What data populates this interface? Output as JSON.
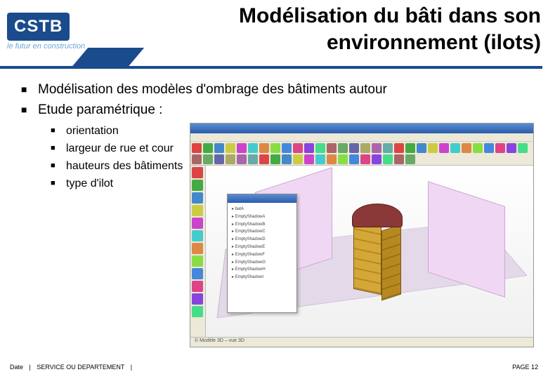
{
  "logo": {
    "name": "CSTB",
    "tagline": "le futur en construction",
    "box_bg": "#1a4b8c",
    "tag_color": "#6aa9d8"
  },
  "title": {
    "line1": "Modélisation du bâti dans son",
    "line2": "environnement (ilots)",
    "rule_color": "#1a4b8c"
  },
  "bullets": {
    "b1": "Modélisation des modèles d'ombrage des bâtiments autour",
    "b2": "Etude paramétrique :",
    "sub": {
      "s1": "orientation",
      "s2": "largeur de rue et cour",
      "s3": "hauteurs des bâtiments",
      "s4": "type d'ilot"
    }
  },
  "screenshot": {
    "toolbar_colors": [
      "#d44",
      "#4a4",
      "#48c",
      "#cc4",
      "#c4c",
      "#4cc",
      "#d84",
      "#8d4",
      "#48d",
      "#d48",
      "#84d",
      "#4d8",
      "#a66",
      "#6a6",
      "#66a",
      "#aa6",
      "#a6a",
      "#6aa",
      "#d44",
      "#4a4",
      "#48c",
      "#cc4",
      "#c4c",
      "#4cc",
      "#d84",
      "#8d4",
      "#48d",
      "#d48",
      "#84d",
      "#4d8",
      "#a66",
      "#6a6",
      "#66a",
      "#aa6",
      "#a6a",
      "#6aa",
      "#d44",
      "#4a4",
      "#48c",
      "#cc4",
      "#c4c",
      "#4cc",
      "#d84",
      "#8d4",
      "#48d",
      "#d48",
      "#84d",
      "#4d8",
      "#a66",
      "#6a6"
    ],
    "lefttool_colors": [
      "#d44",
      "#4a4",
      "#48c",
      "#cc4",
      "#c4c",
      "#4cc",
      "#d84",
      "#8d4",
      "#48d",
      "#d48",
      "#84d",
      "#4d8"
    ],
    "outliner_rows": [
      "batA",
      "EmptyShadowA",
      "EmptyShadowB",
      "EmptyShadowC",
      "EmptyShadowD",
      "EmptyShadowE",
      "EmptyShadowF",
      "EmptyShadowG",
      "EmptyShadowH",
      "EmptyShadowI"
    ],
    "status": "© Modèle 3D – vue 3D",
    "ground_color": "#e4d9e8",
    "wall_color": "#f0d8f4",
    "building": {
      "wall": "#d4a838",
      "wall_dark": "#b88820",
      "roof": "#8a3838"
    }
  },
  "footer": {
    "left1": "Date",
    "left2": "SERVICE OU DEPARTEMENT",
    "right": "PAGE 12"
  }
}
